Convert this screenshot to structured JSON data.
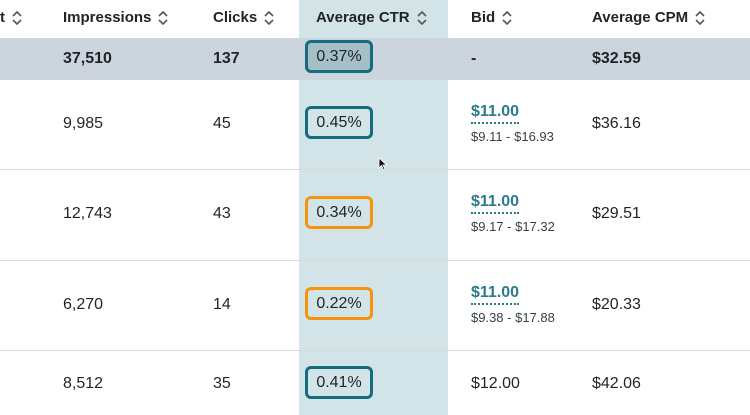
{
  "header": {
    "partial_col": "t",
    "impressions": "Impressions",
    "clicks": "Clicks",
    "avg_ctr": "Average CTR",
    "bid": "Bid",
    "avg_cpm": "Average CPM"
  },
  "total": {
    "impressions": "37,510",
    "clicks": "137",
    "ctr": "0.37%",
    "bid": "-",
    "cpm": "$32.59"
  },
  "rows": [
    {
      "impressions": "9,985",
      "clicks": "45",
      "ctr": "0.45%",
      "ctr_status": "teal",
      "bid": "$11.00",
      "bid_range": "$9.11 - $16.93",
      "cpm": "$36.16"
    },
    {
      "impressions": "12,743",
      "clicks": "43",
      "ctr": "0.34%",
      "ctr_status": "orange",
      "bid": "$11.00",
      "bid_range": "$9.17 - $17.32",
      "cpm": "$29.51"
    },
    {
      "impressions": "6,270",
      "clicks": "14",
      "ctr": "0.22%",
      "ctr_status": "orange",
      "bid": "$11.00",
      "bid_range": "$9.38 - $17.88",
      "cpm": "$20.33"
    },
    {
      "impressions": "8,512",
      "clicks": "35",
      "ctr": "0.41%",
      "ctr_status": "teal",
      "bid": "$12.00",
      "bid_range": "",
      "cpm": "$42.06"
    }
  ],
  "colors": {
    "highlight_column": "#d3e4e8",
    "total_row": "#ccd5dd",
    "teal_border": "#146c7c",
    "orange_border": "#f5940f",
    "link": "#2b7b8b"
  },
  "icons": {
    "sort": "sort-updown-icon",
    "cursor": "mouse-pointer-icon"
  }
}
